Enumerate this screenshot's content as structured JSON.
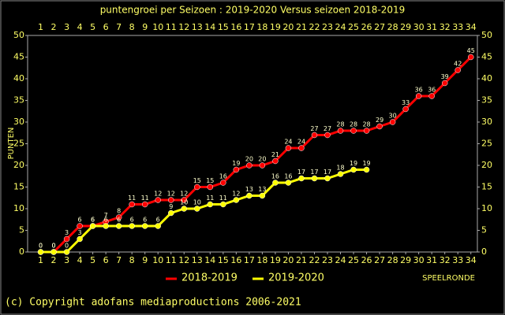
{
  "chart_data": {
    "type": "line",
    "title": "puntengroei per Seizoen : 2019-2020 Versus seizoen 2018-2019",
    "y_label": "PUNTEN",
    "x_label": "SPEELRONDE",
    "footer": "(c) Copyright adofans mediaproductions 2006-2021",
    "x": [
      1,
      2,
      3,
      4,
      5,
      6,
      7,
      8,
      9,
      10,
      11,
      12,
      13,
      14,
      15,
      16,
      17,
      18,
      19,
      20,
      21,
      22,
      23,
      24,
      25,
      26,
      27,
      28,
      29,
      30,
      31,
      32,
      33,
      34
    ],
    "xlim": [
      0,
      34.5
    ],
    "xticks": [
      1,
      2,
      3,
      4,
      5,
      6,
      7,
      8,
      9,
      10,
      11,
      12,
      13,
      14,
      15,
      16,
      17,
      18,
      19,
      20,
      21,
      22,
      23,
      24,
      25,
      26,
      27,
      28,
      29,
      30,
      31,
      32,
      33,
      34
    ],
    "ylim": [
      0,
      50
    ],
    "yticks": [
      0,
      5,
      10,
      15,
      20,
      25,
      30,
      35,
      40,
      45,
      50
    ],
    "series": [
      {
        "name": "2018-2019",
        "color": "#ff0000",
        "values": [
          0,
          0,
          3,
          6,
          6,
          7,
          8,
          11,
          11,
          12,
          12,
          12,
          15,
          15,
          16,
          19,
          20,
          20,
          21,
          24,
          24,
          27,
          27,
          28,
          28,
          28,
          29,
          30,
          33,
          36,
          36,
          39,
          42,
          45
        ]
      },
      {
        "name": "2019-2020",
        "color": "#ffff00",
        "values": [
          0,
          0,
          0,
          3,
          6,
          6,
          6,
          6,
          6,
          6,
          9,
          10,
          10,
          11,
          11,
          12,
          13,
          13,
          16,
          16,
          17,
          17,
          17,
          18,
          19,
          19,
          null,
          null,
          null,
          null,
          null,
          null,
          null,
          null
        ]
      }
    ]
  }
}
